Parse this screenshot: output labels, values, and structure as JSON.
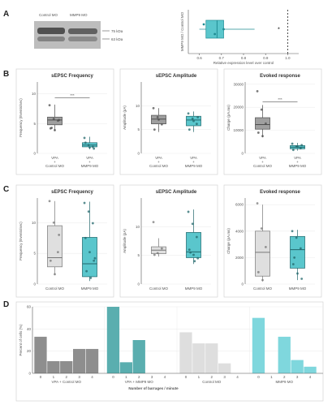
{
  "panel_labels": [
    "A",
    "B",
    "C",
    "D"
  ],
  "blot": {
    "lanes": [
      "Control MO",
      "MMP9 MO"
    ],
    "markers": [
      "75 kDa",
      "63 kDa"
    ]
  },
  "stats": {
    "sig_stars": "***",
    "sig_star_a": "*"
  },
  "chart_data": [
    {
      "id": "A-box",
      "type": "box",
      "title": "",
      "xlabel": "Relative expression level over control",
      "ylabel": "MMP9 MO / Control MO",
      "xlim": [
        0.55,
        1.05
      ],
      "xticks": [
        0.6,
        0.7,
        0.8,
        0.9,
        1.0
      ],
      "box": {
        "min": 0.6,
        "q1": 0.63,
        "median": 0.68,
        "q3": 0.71,
        "max": 0.85
      },
      "points": [
        0.62,
        0.71,
        0.67
      ],
      "reference": 1.0
    },
    {
      "id": "B1",
      "type": "box",
      "title": "sEPSC Frequency",
      "ylabel": "Frequency (Events/sec)",
      "ylim": [
        0,
        12
      ],
      "yticks": [
        0,
        5,
        10
      ],
      "groups": [
        {
          "label": [
            "VPA",
            "+",
            "Control MO"
          ],
          "color": "#8e8e8e",
          "min": 3.8,
          "q1": 4.8,
          "median": 5.6,
          "q3": 6.1,
          "max": 8.2,
          "points": [
            8.1,
            5.8,
            5.5,
            4.2,
            3.9,
            5.6,
            4.3
          ]
        },
        {
          "label": [
            "VPA",
            "+",
            "MMP9 MO"
          ],
          "color": "#3dbcc3",
          "min": 0.7,
          "q1": 1.1,
          "median": 1.4,
          "q3": 1.8,
          "max": 2.8,
          "points": [
            2.6,
            1.4,
            1.1,
            1.8,
            1.0,
            0.8
          ]
        }
      ]
    },
    {
      "id": "B2",
      "type": "box",
      "title": "sEPSC Amplitude",
      "ylabel": "Amplitude (pA)",
      "ylim": [
        0,
        15
      ],
      "yticks": [
        0,
        5,
        10
      ],
      "groups": [
        {
          "label": [
            "VPA",
            "+",
            "Control MO"
          ],
          "color": "#8e8e8e",
          "min": 4.5,
          "q1": 6.2,
          "median": 7.2,
          "q3": 8.0,
          "max": 9.5,
          "points": [
            9.5,
            7.6,
            6.1,
            5.0,
            7.1
          ]
        },
        {
          "label": [
            "VPA",
            "+",
            "MMP9 MO"
          ],
          "color": "#3dbcc3",
          "min": 4.5,
          "q1": 5.8,
          "median": 7.0,
          "q3": 7.8,
          "max": 8.8,
          "points": [
            8.4,
            7.3,
            6.2,
            5.0,
            6.8,
            7.6
          ]
        }
      ]
    },
    {
      "id": "B3",
      "type": "box",
      "title": "Evoked response",
      "ylabel": "Charge (pA.ms)",
      "ylim": [
        0,
        31000
      ],
      "yticks": [
        0,
        10000,
        20000,
        30000
      ],
      "groups": [
        {
          "label": [
            "VPA",
            "+",
            "Control MO"
          ],
          "color": "#8e8e8e",
          "min": 7000,
          "q1": 10500,
          "median": 12500,
          "q3": 15500,
          "max": 21000,
          "points": [
            27000,
            19000,
            13000,
            9000,
            7500
          ]
        },
        {
          "label": [
            "VPA",
            "+",
            "MMP9 MO"
          ],
          "color": "#3dbcc3",
          "min": 1200,
          "q1": 2000,
          "median": 2700,
          "q3": 3400,
          "max": 4600,
          "points": [
            4200,
            3000,
            2200,
            1500,
            2800,
            3600
          ]
        }
      ]
    },
    {
      "id": "C1",
      "type": "box",
      "title": "sEPSC Frequency",
      "ylabel": "Frequency (Events/sec)",
      "ylim": [
        0,
        14
      ],
      "yticks": [
        0,
        5,
        10
      ],
      "groups": [
        {
          "label": [
            "Control MO"
          ],
          "color": "#d9d9d9",
          "min": 1.5,
          "q1": 2.8,
          "median": 4.3,
          "q3": 9.5,
          "max": 13.5,
          "points": [
            13.5,
            10,
            5.2,
            3.8,
            1.6,
            8
          ]
        },
        {
          "label": [
            "MMP9 MO"
          ],
          "color": "#3dbcc3",
          "min": 0.5,
          "q1": 1.2,
          "median": 3.3,
          "q3": 7.6,
          "max": 13.4,
          "points": [
            13.2,
            11.8,
            9.9,
            7.5,
            5.2,
            3.8,
            2.1,
            1.0,
            4.2
          ]
        }
      ]
    },
    {
      "id": "C2",
      "type": "box",
      "title": "sEPSC Amplitude",
      "ylabel": "Amplitude (pA)",
      "ylim": [
        0,
        15
      ],
      "yticks": [
        0,
        5,
        10
      ],
      "groups": [
        {
          "label": [
            "Control MO"
          ],
          "color": "#d9d9d9",
          "min": 4.8,
          "q1": 5.3,
          "median": 5.9,
          "q3": 6.5,
          "max": 8.0,
          "points": [
            10.8,
            5.4,
            6.2,
            5.1
          ]
        },
        {
          "label": [
            "MMP9 MO"
          ],
          "color": "#3dbcc3",
          "min": 3.5,
          "q1": 4.6,
          "median": 5.6,
          "q3": 9.0,
          "max": 13.0,
          "points": [
            12.6,
            10.5,
            8.2,
            6.0,
            5.1,
            4.5,
            5.5,
            4.0
          ]
        }
      ]
    },
    {
      "id": "C3",
      "type": "box",
      "title": "Evoked response",
      "ylabel": "Charge (pA.ms)",
      "ylim": [
        0,
        6500
      ],
      "yticks": [
        0,
        2000,
        4000,
        6000
      ],
      "groups": [
        {
          "label": [
            "Control MO"
          ],
          "color": "#d9d9d9",
          "min": 200,
          "q1": 600,
          "median": 2400,
          "q3": 4000,
          "max": 6000,
          "points": [
            6100,
            4200,
            2800,
            900,
            300
          ]
        },
        {
          "label": [
            "MMP9 MO"
          ],
          "color": "#3dbcc3",
          "min": 300,
          "q1": 1200,
          "median": 2600,
          "q3": 3600,
          "max": 4100,
          "points": [
            4000,
            3500,
            2700,
            1500,
            800,
            400,
            2000
          ]
        }
      ]
    },
    {
      "id": "D",
      "type": "bar",
      "xlabel": "Number of barrages / minute",
      "ylabel": "Percent of cells (%)",
      "ylim": [
        0,
        60
      ],
      "yticks": [
        0,
        20,
        40,
        60
      ],
      "categories": [
        "0",
        "1",
        "2",
        "3",
        "4"
      ],
      "groups": [
        {
          "label": "VPA + Control MO",
          "color": "#8e8e8e",
          "values": [
            33,
            11,
            11,
            22,
            22
          ]
        },
        {
          "label": "VPA + MMP9 MO",
          "color": "#5aaeaf",
          "values": [
            60,
            10,
            30,
            0,
            0
          ]
        },
        {
          "label": "Control MO",
          "color": "#dedede",
          "values": [
            37,
            27,
            27,
            9,
            0
          ]
        },
        {
          "label": "MMP9 MO",
          "color": "#7fd7dd",
          "values": [
            50,
            0,
            33,
            12,
            6
          ]
        }
      ]
    }
  ]
}
